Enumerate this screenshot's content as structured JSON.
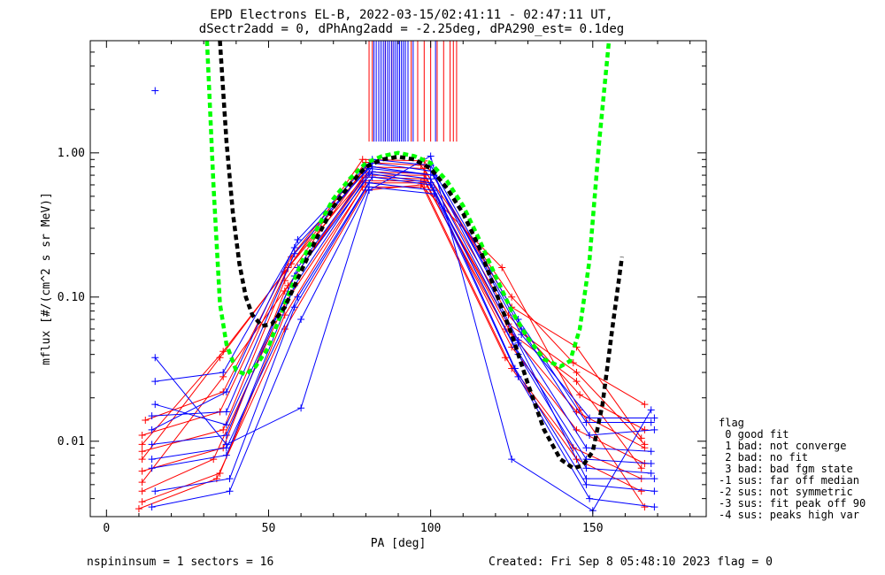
{
  "title": "EPD Electrons EL-B, 2022-03-15/02:41:11 - 02:47:11 UT,",
  "subtitle": "dSectr2add = 0, dPhAng2add = -2.25deg, dPA290_est=   0.1deg",
  "footer_left": "nspininsum =  1  sectors = 16",
  "footer_right": "Created: Fri Sep  8 05:48:10 2023   flag = 0",
  "legend": {
    "title": "flag",
    "items": [
      " 0 good fit",
      " 1 bad: not converge",
      " 2 bad: no fit",
      " 3 bad: bad fgm state",
      "-1 sus: far off median",
      "-2 sus: not symmetric",
      "-3 sus: fit peak off 90",
      "-4 sus: peaks high var"
    ]
  },
  "chart_data": {
    "type": "line",
    "xlabel": "PA [deg]",
    "ylabel": "mflux [#/(cm^2 s sr MeV)]",
    "xlim": [
      -5,
      185
    ],
    "ylim": [
      0.003,
      6
    ],
    "yscale": "log",
    "xticks": [
      0,
      50,
      100,
      150
    ],
    "yticks": [
      0.01,
      0.1,
      1.0
    ],
    "ytick_labels": [
      "0.01",
      "0.10",
      "1.00"
    ],
    "colors": {
      "red": "#ff0000",
      "blue": "#0000ff",
      "green": "#00ff00",
      "black": "#000000"
    },
    "series": [
      {
        "color": "#ff0000",
        "x": [
          11,
          36,
          55,
          79,
          98,
          125,
          145,
          166
        ],
        "y": [
          0.0085,
          0.012,
          0.13,
          0.74,
          0.72,
          0.055,
          0.016,
          0.009
        ]
      },
      {
        "color": "#ff0000",
        "x": [
          11,
          36,
          55,
          79,
          98,
          125,
          145,
          166
        ],
        "y": [
          0.0062,
          0.009,
          0.11,
          0.68,
          0.66,
          0.045,
          0.012,
          0.007
        ]
      },
      {
        "color": "#ff0000",
        "x": [
          11,
          33,
          55,
          80,
          97,
          123,
          144,
          165
        ],
        "y": [
          0.0045,
          0.0075,
          0.09,
          0.62,
          0.62,
          0.038,
          0.009,
          0.0055
        ]
      },
      {
        "color": "#ff0000",
        "x": [
          11,
          35,
          56,
          80,
          98,
          124,
          146,
          166
        ],
        "y": [
          0.011,
          0.016,
          0.16,
          0.8,
          0.78,
          0.075,
          0.021,
          0.012
        ]
      },
      {
        "color": "#ff0000",
        "x": [
          11,
          35,
          55,
          79,
          98,
          125,
          145,
          165
        ],
        "y": [
          0.0038,
          0.006,
          0.075,
          0.58,
          0.58,
          0.032,
          0.0075,
          0.0045
        ]
      },
      {
        "color": "#ff0000",
        "x": [
          12,
          36,
          57,
          80,
          97,
          125,
          144,
          166
        ],
        "y": [
          0.014,
          0.022,
          0.19,
          0.86,
          0.82,
          0.1,
          0.035,
          0.018
        ]
      },
      {
        "color": "#ff0000",
        "x": [
          11,
          35,
          55,
          80,
          98,
          124,
          145,
          166
        ],
        "y": [
          0.0075,
          0.038,
          0.15,
          0.7,
          0.7,
          0.065,
          0.03,
          0.0095
        ]
      },
      {
        "color": "#ff0000",
        "x": [
          11,
          36,
          56,
          79,
          98,
          123,
          145,
          165
        ],
        "y": [
          0.0052,
          0.028,
          0.12,
          0.64,
          0.64,
          0.06,
          0.026,
          0.0065
        ]
      },
      {
        "color": "#ff0000",
        "x": [
          10,
          34,
          55,
          80,
          97,
          122,
          146,
          166
        ],
        "y": [
          0.0034,
          0.0055,
          0.06,
          0.55,
          0.6,
          0.16,
          0.0165,
          0.0035
        ]
      },
      {
        "color": "#ff0000",
        "x": [
          11,
          36,
          57,
          79,
          98,
          125,
          145,
          165
        ],
        "y": [
          0.0095,
          0.042,
          0.17,
          0.9,
          0.88,
          0.085,
          0.045,
          0.0105
        ]
      },
      {
        "color": "#0000ff",
        "x": [
          14,
          37,
          58,
          81,
          100,
          127,
          148,
          168
        ],
        "y": [
          0.0065,
          0.008,
          0.12,
          0.72,
          0.62,
          0.04,
          0.0065,
          0.006
        ]
      },
      {
        "color": "#0000ff",
        "x": [
          14,
          37,
          59,
          82,
          101,
          127,
          148,
          168
        ],
        "y": [
          0.0095,
          0.011,
          0.16,
          0.8,
          0.7,
          0.05,
          0.009,
          0.0085
        ]
      },
      {
        "color": "#0000ff",
        "x": [
          14,
          37,
          58,
          82,
          100,
          128,
          149,
          169
        ],
        "y": [
          0.015,
          0.016,
          0.2,
          0.85,
          0.75,
          0.06,
          0.011,
          0.012
        ]
      },
      {
        "color": "#0000ff",
        "x": [
          15,
          38,
          58,
          81,
          101,
          126,
          148,
          169
        ],
        "y": [
          0.0045,
          0.0055,
          0.085,
          0.62,
          0.55,
          0.032,
          0.005,
          0.0045
        ]
      },
      {
        "color": "#0000ff",
        "x": [
          14,
          37,
          59,
          82,
          100,
          127,
          148,
          168
        ],
        "y": [
          0.012,
          0.022,
          0.25,
          0.9,
          0.82,
          0.07,
          0.0135,
          0.0135
        ]
      },
      {
        "color": "#0000ff",
        "x": [
          15,
          36,
          58,
          81,
          101,
          128,
          149,
          169
        ],
        "y": [
          0.026,
          0.03,
          0.22,
          0.78,
          0.7,
          0.055,
          0.0145,
          0.0145
        ]
      },
      {
        "color": "#0000ff",
        "x": [
          14,
          37,
          59,
          82,
          100,
          126,
          148,
          168
        ],
        "y": [
          0.0075,
          0.009,
          0.1,
          0.68,
          0.6,
          0.045,
          0.0075,
          0.007
        ]
      },
      {
        "color": "#0000ff",
        "x": [
          14,
          38,
          60,
          81,
          101,
          127,
          149,
          169
        ],
        "y": [
          0.0035,
          0.0045,
          0.07,
          0.58,
          0.52,
          0.028,
          0.004,
          0.0035
        ]
      },
      {
        "color": "#0000ff",
        "x": [
          15,
          37,
          58,
          82,
          100,
          127,
          148,
          169
        ],
        "y": [
          0.018,
          0.013,
          0.14,
          0.74,
          0.66,
          0.048,
          0.0055,
          0.0055
        ]
      },
      {
        "color": "#0000ff",
        "x": [
          15,
          37,
          60,
          81,
          100,
          125,
          150,
          168
        ],
        "y": [
          0.038,
          0.0095,
          0.017,
          0.55,
          0.95,
          0.0075,
          0.0033,
          0.0165
        ]
      }
    ],
    "outlier_points": [
      {
        "color": "#0000ff",
        "x": 15,
        "y": 2.7
      }
    ],
    "fits": [
      {
        "color": "#00ff00",
        "style": "dotted-thick",
        "x": [
          31,
          33,
          35,
          37,
          40,
          43,
          46,
          50,
          55,
          60,
          65,
          70,
          75,
          80,
          85,
          90,
          95,
          100,
          105,
          110,
          115,
          120,
          125,
          130,
          135,
          140,
          143,
          146,
          149,
          152,
          155
        ],
        "y": [
          6.0,
          0.6,
          0.09,
          0.047,
          0.031,
          0.029,
          0.033,
          0.045,
          0.09,
          0.17,
          0.3,
          0.48,
          0.66,
          0.85,
          0.95,
          1.0,
          0.95,
          0.85,
          0.64,
          0.43,
          0.25,
          0.14,
          0.08,
          0.052,
          0.037,
          0.033,
          0.036,
          0.06,
          0.18,
          1.2,
          6.0
        ]
      },
      {
        "color": "#000000",
        "style": "dotted-thick",
        "x": [
          35,
          37,
          39,
          41,
          43,
          45,
          48,
          51,
          55,
          60,
          65,
          70,
          75,
          80,
          85,
          90,
          95,
          100,
          105,
          110,
          115,
          120,
          125,
          130,
          135,
          140,
          144,
          147,
          150,
          153,
          156,
          159
        ],
        "y": [
          6.0,
          1.2,
          0.38,
          0.17,
          0.1,
          0.075,
          0.063,
          0.065,
          0.085,
          0.15,
          0.26,
          0.42,
          0.6,
          0.8,
          0.9,
          0.94,
          0.9,
          0.78,
          0.57,
          0.38,
          0.22,
          0.11,
          0.055,
          0.025,
          0.012,
          0.0075,
          0.0065,
          0.0068,
          0.0085,
          0.018,
          0.06,
          0.19
        ]
      }
    ],
    "pa_markers": [
      {
        "color": "#ff0000",
        "x": [
          81,
          82,
          84,
          86,
          88,
          94,
          96,
          98,
          100,
          102,
          104,
          106,
          107,
          108
        ]
      },
      {
        "color": "#0000ff",
        "x": [
          82.5,
          83.2,
          84,
          84.7,
          85.4,
          86,
          86.7,
          87.3,
          88,
          88.6,
          89.2,
          89.8,
          90.4,
          91,
          91.6,
          92.2,
          93,
          94.6,
          101.5
        ]
      }
    ]
  }
}
